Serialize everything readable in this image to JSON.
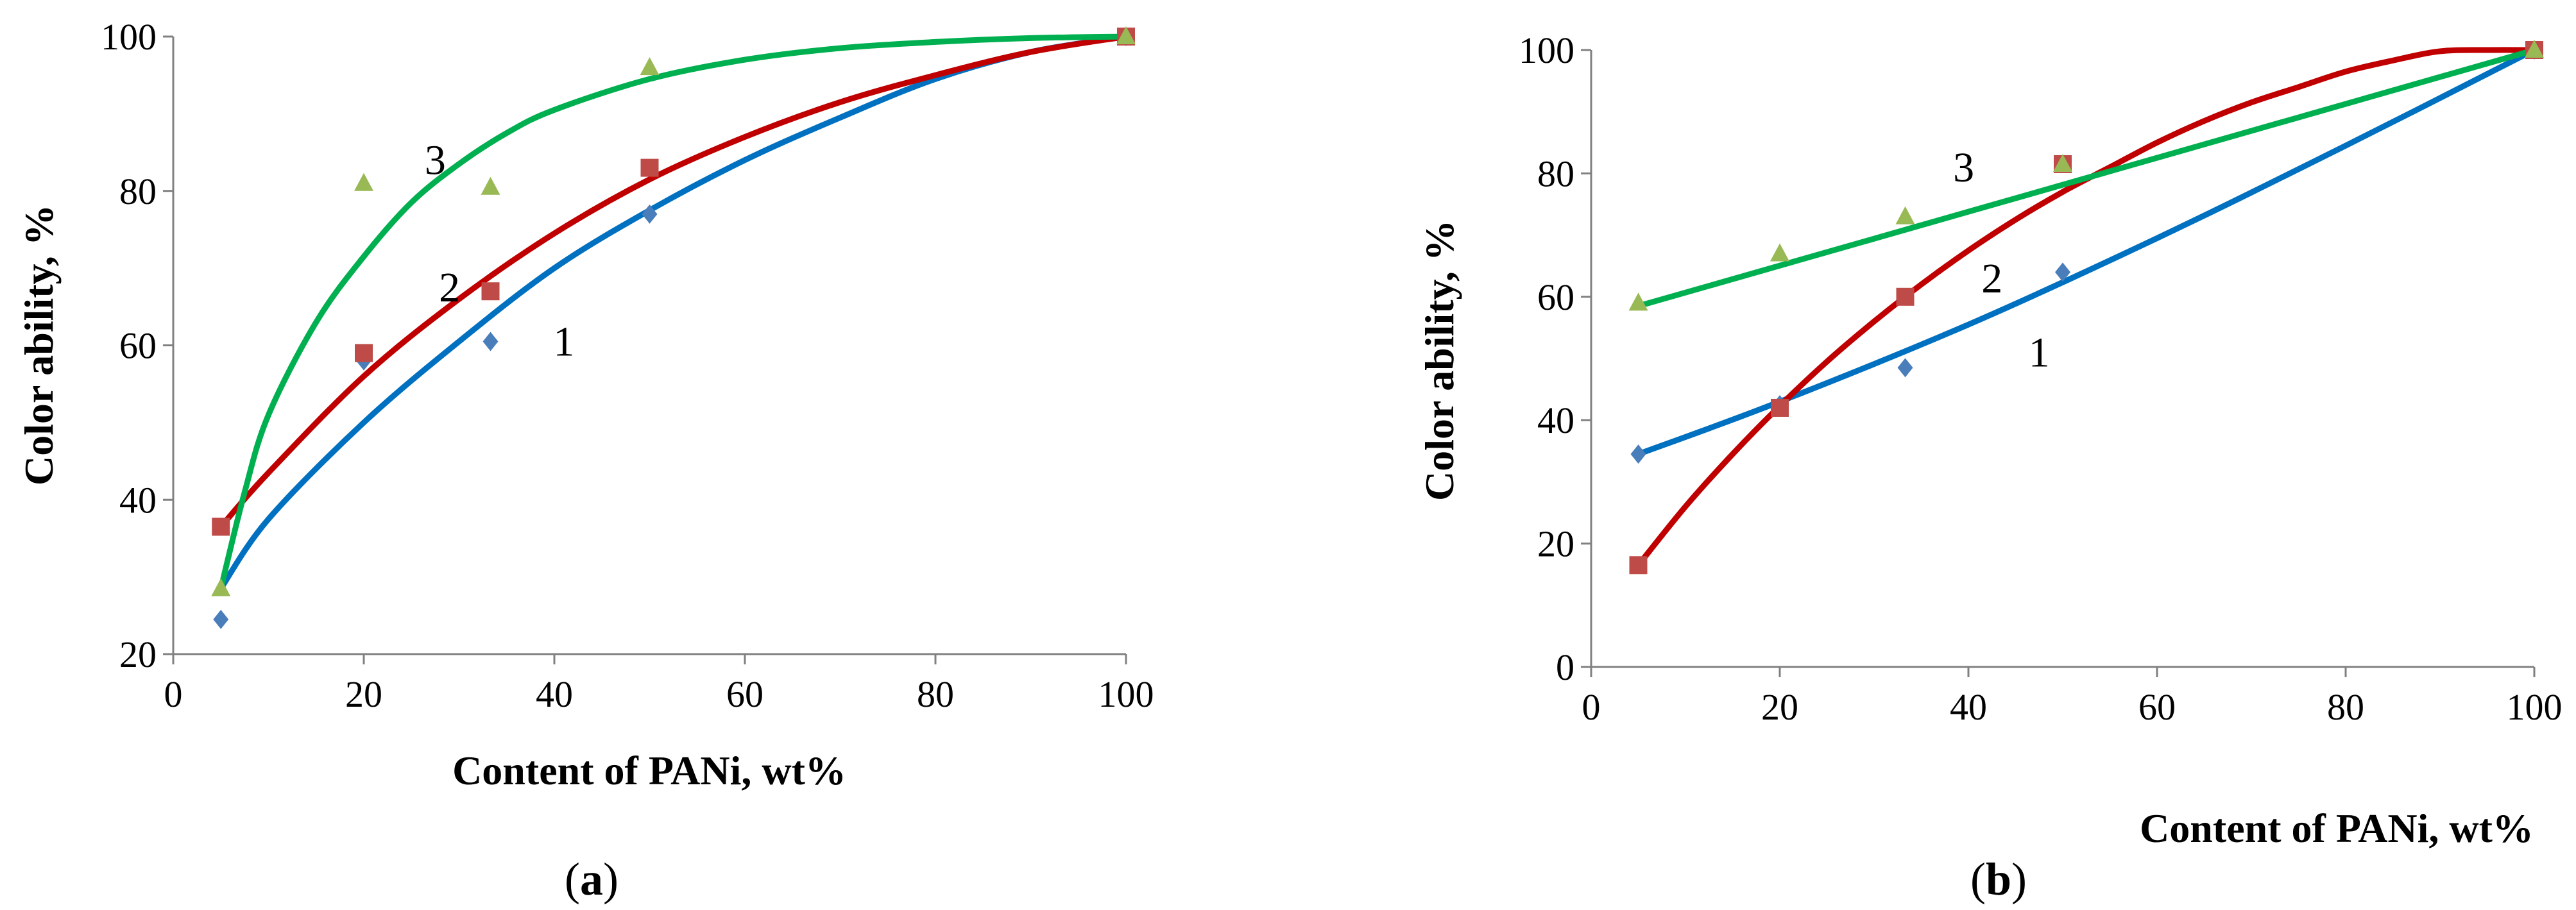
{
  "colors": {
    "series1": "#4a7ebb",
    "series2": "#be4b48",
    "series3": "#98b954",
    "fit1": "#0070c0",
    "fit2": "#c00000",
    "fit3": "#00b050",
    "axis": "#808080"
  },
  "chart_data": [
    {
      "type": "scatter",
      "panel": "a",
      "caption_open": "(",
      "caption_letter": "a",
      "caption_close": ")",
      "xlabel": "Content of PANi, wt%",
      "ylabel": "Color ability,  %",
      "xlim": [
        0,
        100
      ],
      "ylim": [
        20,
        100
      ],
      "xticks": [
        0,
        20,
        40,
        60,
        80,
        100
      ],
      "yticks": [
        20,
        40,
        60,
        80,
        100
      ],
      "series": [
        {
          "name": "1",
          "marker": "diamond",
          "x": [
            5,
            20,
            33.3,
            50,
            100
          ],
          "y": [
            24.5,
            58,
            60.5,
            77,
            100
          ],
          "fit": {
            "x": [
              5,
              10,
              20,
              30,
              40,
              50,
              60,
              70,
              80,
              90,
              100
            ],
            "y": [
              28.5,
              37.5,
              50,
              60.5,
              70,
              77.5,
              84,
              89.5,
              94.5,
              98,
              100
            ]
          },
          "label": "1",
          "label_at": [
            41,
            60.5
          ]
        },
        {
          "name": "2",
          "marker": "square",
          "x": [
            5,
            20,
            33.3,
            50,
            100
          ],
          "y": [
            36.5,
            59,
            67,
            83,
            100
          ],
          "fit": {
            "x": [
              5,
              10,
              20,
              30,
              40,
              50,
              60,
              70,
              80,
              90,
              100
            ],
            "y": [
              36.5,
              43.5,
              56,
              66,
              74.5,
              81.5,
              87,
              91.5,
              95,
              98,
              100
            ]
          },
          "label": "2",
          "label_at": [
            29,
            67.5
          ]
        },
        {
          "name": "3",
          "marker": "triangle",
          "x": [
            5,
            20,
            33.3,
            50,
            100
          ],
          "y": [
            28.5,
            81,
            80.5,
            96,
            100
          ],
          "fit": {
            "x": [
              5,
              7.5,
              10,
              15,
              20,
              25,
              30,
              35,
              40,
              50,
              60,
              70,
              80,
              90,
              100
            ],
            "y": [
              28.5,
              41,
              51,
              63,
              71.5,
              78.5,
              83.5,
              87.5,
              90.5,
              94.5,
              97,
              98.5,
              99.3,
              99.8,
              100
            ]
          },
          "label": "3",
          "label_at": [
            27.5,
            84
          ]
        }
      ]
    },
    {
      "type": "scatter",
      "panel": "b",
      "caption_open": "(",
      "caption_letter": "b",
      "caption_close": ")",
      "xlabel": "Content of PANi, wt%",
      "ylabel": "Color ability,  %",
      "xlim": [
        0,
        100
      ],
      "ylim": [
        0,
        100
      ],
      "xticks": [
        0,
        20,
        40,
        60,
        80,
        100
      ],
      "yticks": [
        0,
        20,
        40,
        60,
        80,
        100
      ],
      "series": [
        {
          "name": "1",
          "marker": "diamond",
          "x": [
            5,
            20,
            33.3,
            50,
            100
          ],
          "y": [
            34.5,
            42.5,
            48.5,
            64,
            100
          ],
          "fit": {
            "x": [
              5,
              20,
              40,
              60,
              80,
              100
            ],
            "y": [
              34.5,
              43,
              55.5,
              69.5,
              84.5,
              100
            ]
          },
          "label": "1",
          "label_at": [
            47.5,
            51
          ]
        },
        {
          "name": "2",
          "marker": "square",
          "x": [
            5,
            20,
            33.3,
            50,
            100
          ],
          "y": [
            16.5,
            42,
            60,
            81.5,
            100
          ],
          "fit": {
            "x": [
              5,
              10,
              15,
              20,
              25,
              30,
              35,
              40,
              45,
              50,
              55,
              60,
              65,
              70,
              75,
              80,
              85,
              90,
              95,
              100
            ],
            "y": [
              16.5,
              26,
              34.5,
              42.3,
              49.5,
              56,
              62,
              67.5,
              72.5,
              77,
              81,
              85,
              88.5,
              91.5,
              94,
              96.5,
              98.3,
              99.8,
              100,
              100
            ]
          },
          "label": "2",
          "label_at": [
            42.5,
            63
          ]
        },
        {
          "name": "3",
          "marker": "triangle",
          "x": [
            5,
            20,
            33.3,
            50,
            100
          ],
          "y": [
            59,
            67,
            73,
            81.5,
            100
          ],
          "fit": {
            "x": [
              5,
              100
            ],
            "y": [
              58.5,
              100
            ]
          },
          "label": "3",
          "label_at": [
            39.5,
            81
          ]
        }
      ]
    }
  ]
}
